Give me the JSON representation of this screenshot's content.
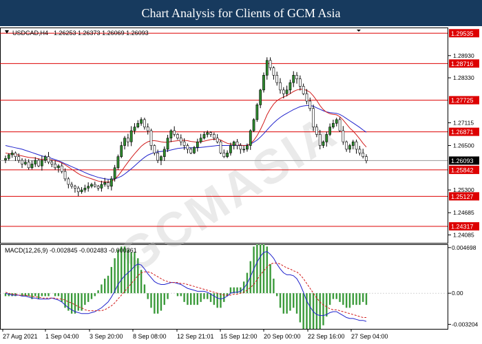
{
  "header": {
    "title": "Chart Analysis for Clients of GCM Asia"
  },
  "watermark": "GCMASIA",
  "chart_data": {
    "type": "candlestick",
    "symbol": "USDCAD,H4",
    "ohlc_header": "1.26253 1.26373 1.26069 1.26093",
    "current_price": 1.26093,
    "ylim": [
      1.2387,
      1.2967
    ],
    "price_ticks": [
      "1.28930",
      "1.28330",
      "1.27115",
      "1.26500",
      "1.25300",
      "1.24685",
      "1.24085"
    ],
    "levels": [
      {
        "label": "1.29535",
        "value": 1.29535
      },
      {
        "label": "1.28716",
        "value": 1.28716
      },
      {
        "label": "1.27725",
        "value": 1.27725
      },
      {
        "label": "1.26871",
        "value": 1.26871
      },
      {
        "label": "1.25842",
        "value": 1.25842
      },
      {
        "label": "1.25127",
        "value": 1.25127
      },
      {
        "label": "1.24317",
        "value": 1.24317
      }
    ],
    "current_label": "1.26093",
    "x_labels": [
      "27 Aug 2021",
      "1 Sep 04:00",
      "3 Sep 20:00",
      "8 Sep 08:00",
      "12 Sep 21:01",
      "15 Sep 12:00",
      "20 Sep 00:00",
      "22 Sep 16:00",
      "27 Sep 04:00"
    ],
    "close": [
      1.2615,
      1.2625,
      1.263,
      1.262,
      1.261,
      1.26,
      1.2605,
      1.259,
      1.26,
      1.261,
      1.2595,
      1.261,
      1.262,
      1.2605,
      1.26,
      1.259,
      1.2595,
      1.258,
      1.256,
      1.2545,
      1.254,
      1.2535,
      1.2525,
      1.253,
      1.2535,
      1.254,
      1.2545,
      1.254,
      1.2535,
      1.2545,
      1.255,
      1.254,
      1.256,
      1.259,
      1.262,
      1.265,
      1.267,
      1.266,
      1.269,
      1.27,
      1.271,
      1.272,
      1.27,
      1.269,
      1.265,
      1.263,
      1.261,
      1.262,
      1.264,
      1.267,
      1.269,
      1.268,
      1.267,
      1.266,
      1.265,
      1.264,
      1.263,
      1.2645,
      1.266,
      1.267,
      1.268,
      1.2685,
      1.268,
      1.267,
      1.266,
      1.263,
      1.262,
      1.263,
      1.265,
      1.266,
      1.265,
      1.264,
      1.264,
      1.265,
      1.269,
      1.272,
      1.276,
      1.28,
      1.284,
      1.288,
      1.286,
      1.284,
      1.282,
      1.28,
      1.279,
      1.28,
      1.282,
      1.284,
      1.283,
      1.281,
      1.279,
      1.277,
      1.275,
      1.27,
      1.268,
      1.265,
      1.266,
      1.268,
      1.27,
      1.271,
      1.272,
      1.269,
      1.266,
      1.264,
      1.265,
      1.266,
      1.264,
      1.263,
      1.262,
      1.2609
    ],
    "ma_red": [
      1.263,
      1.2628,
      1.2627,
      1.2626,
      1.2624,
      1.2622,
      1.262,
      1.2618,
      1.2617,
      1.2616,
      1.2614,
      1.2612,
      1.2613,
      1.2612,
      1.2611,
      1.2609,
      1.2607,
      1.2603,
      1.2598,
      1.2592,
      1.2586,
      1.258,
      1.2574,
      1.2569,
      1.2566,
      1.2563,
      1.256,
      1.2557,
      1.2554,
      1.2552,
      1.2552,
      1.2551,
      1.2553,
      1.2559,
      1.2568,
      1.258,
      1.2593,
      1.2605,
      1.2617,
      1.2628,
      1.2638,
      1.2648,
      1.2655,
      1.266,
      1.2663,
      1.2663,
      1.2662,
      1.266,
      1.2659,
      1.2659,
      1.2661,
      1.2662,
      1.2663,
      1.2664,
      1.2664,
      1.2663,
      1.2661,
      1.266,
      1.2659,
      1.266,
      1.2662,
      1.2664,
      1.2666,
      1.2667,
      1.2667,
      1.2665,
      1.266,
      1.2656,
      1.2654,
      1.2653,
      1.2652,
      1.2651,
      1.265,
      1.265,
      1.2655,
      1.2664,
      1.2677,
      1.2693,
      1.2712,
      1.2733,
      1.2749,
      1.2762,
      1.2771,
      1.2777,
      1.2781,
      1.2785,
      1.279,
      1.2796,
      1.28,
      1.2802,
      1.2802,
      1.2799,
      1.2794,
      1.2784,
      1.2772,
      1.2758,
      1.2747,
      1.274,
      1.2736,
      1.2734,
      1.2733,
      1.2728,
      1.2719,
      1.2708,
      1.2697,
      1.2689,
      1.2679,
      1.2668,
      1.2656,
      1.2646
    ],
    "ma_blue": [
      1.265,
      1.2648,
      1.2646,
      1.2644,
      1.2642,
      1.264,
      1.2637,
      1.2634,
      1.2631,
      1.2628,
      1.2625,
      1.2622,
      1.262,
      1.2618,
      1.2615,
      1.2612,
      1.2609,
      1.2605,
      1.2601,
      1.2597,
      1.2593,
      1.2589,
      1.2585,
      1.2581,
      1.2577,
      1.2573,
      1.257,
      1.2567,
      1.2564,
      1.2562,
      1.256,
      1.2559,
      1.2559,
      1.256,
      1.2563,
      1.2567,
      1.2573,
      1.258,
      1.2587,
      1.2595,
      1.2603,
      1.2611,
      1.2618,
      1.2624,
      1.2628,
      1.2631,
      1.2633,
      1.2634,
      1.2635,
      1.2636,
      1.2638,
      1.264,
      1.2642,
      1.2643,
      1.2644,
      1.2644,
      1.2644,
      1.2644,
      1.2644,
      1.2645,
      1.2646,
      1.2647,
      1.2648,
      1.2649,
      1.265,
      1.265,
      1.265,
      1.265,
      1.265,
      1.265,
      1.265,
      1.265,
      1.265,
      1.2651,
      1.2654,
      1.2659,
      1.2665,
      1.2673,
      1.2682,
      1.2692,
      1.2702,
      1.2711,
      1.2719,
      1.2726,
      1.2732,
      1.2737,
      1.2742,
      1.2747,
      1.2751,
      1.2755,
      1.2757,
      1.2758,
      1.2758,
      1.2756,
      1.2752,
      1.2748,
      1.2744,
      1.2741,
      1.2739,
      1.2738,
      1.2737,
      1.2734,
      1.2729,
      1.2723,
      1.2717,
      1.2711,
      1.2705,
      1.2699,
      1.2692,
      1.2686
    ],
    "macd": {
      "label": "MACD(12,26,9) -0.002845 -0.002483 -0.000361",
      "ylim": [
        -0.0036,
        0.0049
      ],
      "ticks": [
        "0.004698",
        "0.00",
        "-0.003204"
      ],
      "macd_line": [
        0.0,
        -0.0001,
        -0.0002,
        -0.0002,
        -0.0002,
        -0.0003,
        -0.0003,
        -0.0004,
        -0.0005,
        -0.0005,
        -0.0006,
        -0.0006,
        -0.0006,
        -0.0006,
        -0.0005,
        -0.0006,
        -0.0007,
        -0.0009,
        -0.0012,
        -0.0015,
        -0.0017,
        -0.0019,
        -0.002,
        -0.0021,
        -0.0021,
        -0.0021,
        -0.002,
        -0.0019,
        -0.0017,
        -0.0015,
        -0.0012,
        -0.0009,
        -0.0004,
        0.0002,
        0.0009,
        0.0014,
        0.0018,
        0.0021,
        0.0024,
        0.0028,
        0.003,
        0.0029,
        0.0025,
        0.002,
        0.0016,
        0.0012,
        0.001,
        0.0009,
        0.0009,
        0.001,
        0.0011,
        0.0011,
        0.001,
        0.0009,
        0.0007,
        0.0005,
        0.0004,
        0.0003,
        0.0002,
        0.0002,
        0.0002,
        0.0001,
        -0.0001,
        -0.0003,
        -0.0005,
        -0.0006,
        -0.0005,
        -0.0003,
        0.0,
        0.0001,
        0.0001,
        0.0002,
        0.0005,
        0.001,
        0.0017,
        0.0025,
        0.0032,
        0.0038,
        0.0042,
        0.0043,
        0.004,
        0.0036,
        0.003,
        0.0025,
        0.0021,
        0.0019,
        0.0019,
        0.0018,
        0.0015,
        0.0009,
        0.0001,
        -0.0008,
        -0.0014,
        -0.0019,
        -0.0022,
        -0.0023,
        -0.0023,
        -0.0022,
        -0.002,
        -0.0019,
        -0.0019,
        -0.0021,
        -0.0023,
        -0.0025,
        -0.0026,
        -0.0026,
        -0.0027,
        -0.0028,
        -0.0028,
        -0.0029
      ],
      "signal_line": [
        0.0001,
        0.0,
        -0.0001,
        -0.0001,
        -0.0002,
        -0.0002,
        -0.0002,
        -0.0003,
        -0.0003,
        -0.0004,
        -0.0004,
        -0.0005,
        -0.0005,
        -0.0005,
        -0.0005,
        -0.0005,
        -0.0006,
        -0.0006,
        -0.0007,
        -0.0009,
        -0.001,
        -0.0012,
        -0.0014,
        -0.0015,
        -0.0017,
        -0.0018,
        -0.0018,
        -0.0018,
        -0.0018,
        -0.0018,
        -0.0017,
        -0.0015,
        -0.0013,
        -0.001,
        -0.0006,
        -0.0002,
        0.0002,
        0.0006,
        0.001,
        0.0014,
        0.0018,
        0.0021,
        0.0022,
        0.0022,
        0.0021,
        0.0019,
        0.0017,
        0.0015,
        0.0013,
        0.0012,
        0.0011,
        0.0011,
        0.0011,
        0.001,
        0.001,
        0.0009,
        0.0008,
        0.0007,
        0.0006,
        0.0005,
        0.0004,
        0.0003,
        0.0002,
        0.0001,
        0.0,
        -0.0001,
        -0.0002,
        -0.0002,
        -0.0002,
        -0.0001,
        -0.0001,
        0.0,
        0.0001,
        0.0003,
        0.0006,
        0.0009,
        0.0014,
        0.0019,
        0.0023,
        0.0027,
        0.003,
        0.0031,
        0.0031,
        0.003,
        0.0028,
        0.0026,
        0.0025,
        0.0023,
        0.0022,
        0.0019,
        0.0015,
        0.001,
        0.0005,
        0.0,
        -0.0005,
        -0.0009,
        -0.0012,
        -0.0014,
        -0.0016,
        -0.0017,
        -0.0017,
        -0.0018,
        -0.0019,
        -0.002,
        -0.0021,
        -0.0022,
        -0.0023,
        -0.0024,
        -0.0025,
        -0.0025
      ]
    }
  }
}
